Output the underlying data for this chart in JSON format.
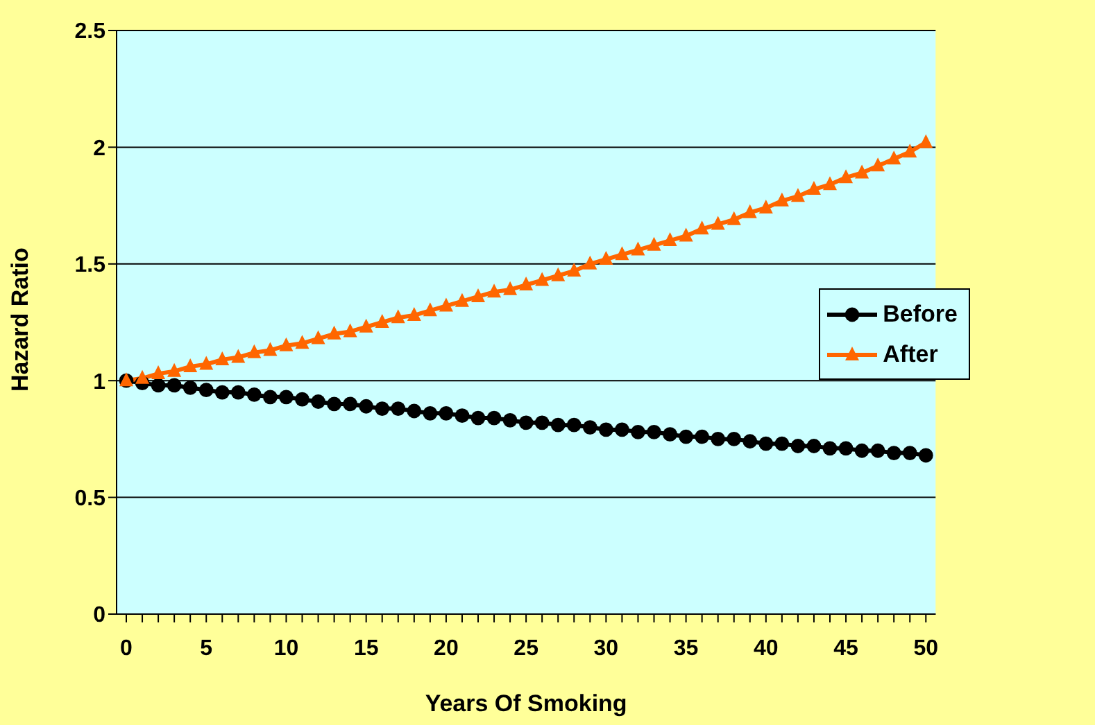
{
  "chart_data": {
    "type": "line",
    "xlabel": "Years Of Smoking",
    "ylabel": "Hazard Ratio",
    "categories": [
      "0",
      null,
      null,
      null,
      null,
      "5",
      null,
      null,
      null,
      null,
      "10",
      null,
      null,
      null,
      null,
      "15",
      null,
      null,
      null,
      null,
      "20",
      null,
      null,
      null,
      null,
      "25",
      null,
      null,
      null,
      null,
      "30",
      null,
      null,
      null,
      null,
      "35",
      null,
      null,
      null,
      null,
      "40",
      null,
      null,
      null,
      null,
      "45",
      null,
      null,
      null,
      null,
      "50"
    ],
    "series": [
      {
        "name": "Before",
        "color": "#000000",
        "marker": "circle",
        "values": [
          1.0,
          0.99,
          0.98,
          0.98,
          0.97,
          0.96,
          0.95,
          0.95,
          0.94,
          0.93,
          0.93,
          0.92,
          0.91,
          0.9,
          0.9,
          0.89,
          0.88,
          0.88,
          0.87,
          0.86,
          0.86,
          0.85,
          0.84,
          0.84,
          0.83,
          0.82,
          0.82,
          0.81,
          0.81,
          0.8,
          0.79,
          0.79,
          0.78,
          0.78,
          0.77,
          0.76,
          0.76,
          0.75,
          0.75,
          0.74,
          0.73,
          0.73,
          0.72,
          0.72,
          0.71,
          0.71,
          0.7,
          0.7,
          0.69,
          0.69,
          0.68
        ]
      },
      {
        "name": "After",
        "color": "#ff6600",
        "marker": "triangle",
        "values": [
          1.0,
          1.01,
          1.03,
          1.04,
          1.06,
          1.07,
          1.09,
          1.1,
          1.12,
          1.13,
          1.15,
          1.16,
          1.18,
          1.2,
          1.21,
          1.23,
          1.25,
          1.27,
          1.28,
          1.3,
          1.32,
          1.34,
          1.36,
          1.38,
          1.39,
          1.41,
          1.43,
          1.45,
          1.47,
          1.5,
          1.52,
          1.54,
          1.56,
          1.58,
          1.6,
          1.62,
          1.65,
          1.67,
          1.69,
          1.72,
          1.74,
          1.77,
          1.79,
          1.82,
          1.84,
          1.87,
          1.89,
          1.92,
          1.95,
          1.98,
          2.02
        ]
      }
    ],
    "ylim": [
      0,
      2.5
    ],
    "yticks": [
      0,
      0.5,
      1,
      1.5,
      2,
      2.5
    ],
    "grid": "y",
    "legend": "right",
    "line_style": "solid"
  }
}
